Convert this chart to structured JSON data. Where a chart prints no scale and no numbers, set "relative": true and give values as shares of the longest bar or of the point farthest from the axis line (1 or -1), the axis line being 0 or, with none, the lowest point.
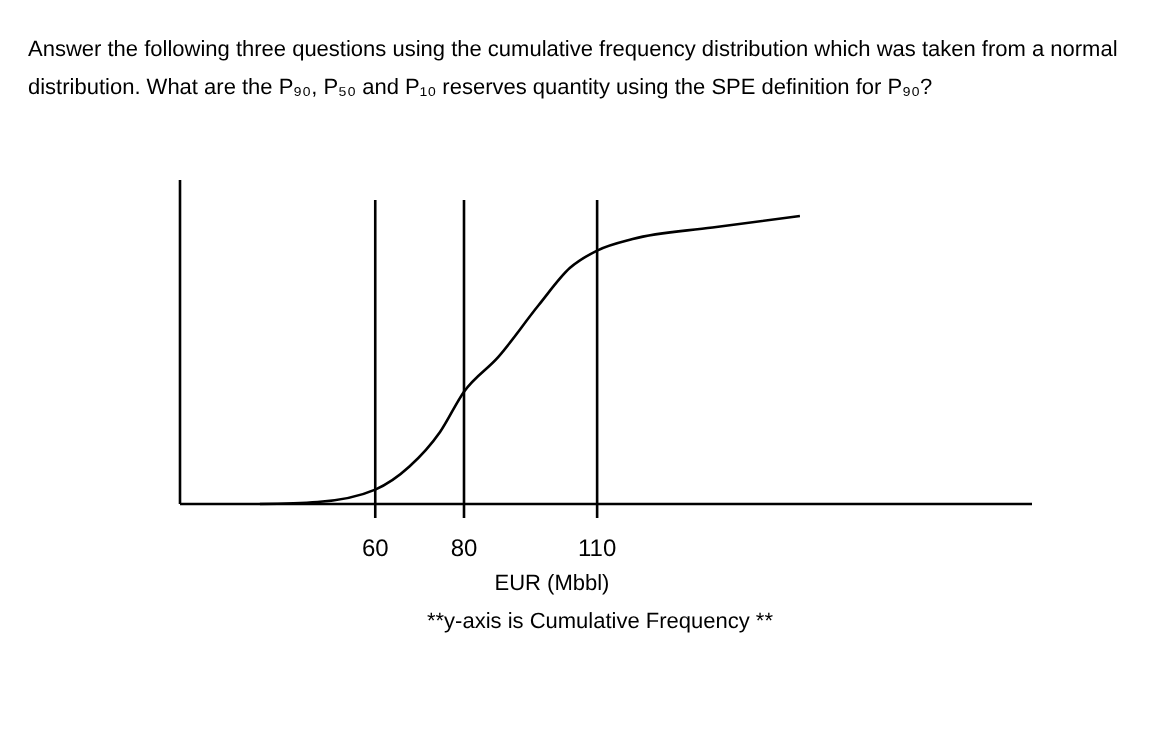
{
  "chart_data": {
    "type": "line",
    "relative": true,
    "title": "Answer the following three questions using the cumulative frequency distribution which was taken from a normal distribution. What are the P₉₀, P₅₀ and P₁₀ reserves quantity using the SPE definition for P₉₀?",
    "xlabel": "EUR (Mbbl)",
    "annotations": [
      "**y-axis is Cumulative Frequency **"
    ],
    "xlim": [
      16,
      208
    ],
    "xticks": [
      60,
      80,
      110
    ],
    "x": [
      34,
      47,
      60,
      67.7,
      74.6,
      80,
      87.7,
      96.8,
      103.9,
      110,
      118,
      136,
      155.7
    ],
    "series": [
      {
        "color": "#000000",
        "values": [
          0,
          0.007,
          0.05,
          0.13,
          0.25,
          0.39,
          0.51,
          0.69,
          0.82,
          0.88,
          0.92,
          0.96,
          1
        ]
      }
    ],
    "ref_lines": [
      {
        "axis": "x",
        "value": 60,
        "color": "#000000"
      },
      {
        "axis": "x",
        "value": 80,
        "color": "#000000"
      },
      {
        "axis": "x",
        "value": 110,
        "color": "#000000"
      }
    ],
    "marker": "none",
    "line_style": "solid"
  }
}
